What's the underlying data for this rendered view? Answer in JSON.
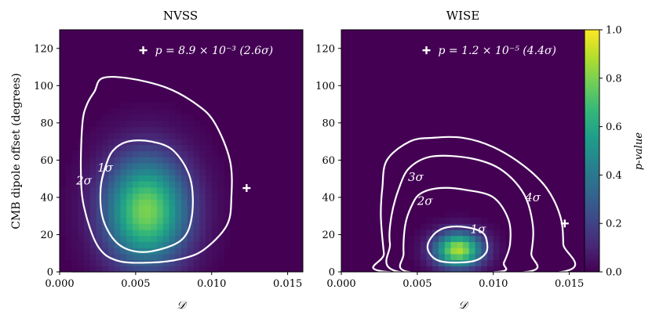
{
  "chart_data": [
    {
      "type": "heatmap",
      "title": "NVSS",
      "xlabel": "𝒟",
      "ylabel": "CMB dipole offset (degrees)",
      "xlim": [
        0.0,
        0.016
      ],
      "ylim": [
        0,
        130
      ],
      "xticks": [
        "0.000",
        "0.005",
        "0.010",
        "0.015"
      ],
      "xtick_values": [
        0.0,
        0.005,
        0.01,
        0.015
      ],
      "yticks": [
        "0",
        "20",
        "40",
        "60",
        "80",
        "100",
        "120"
      ],
      "ytick_values": [
        0,
        20,
        40,
        60,
        80,
        100,
        120
      ],
      "peak": {
        "D": 0.0057,
        "offset": 33,
        "sD": 0.0019,
        "sO": 20,
        "value": 0.8
      },
      "contours": [
        {
          "label": "1σ",
          "points": [
            [
              0.003,
              56
            ],
            [
              0.0035,
              65
            ],
            [
              0.0045,
              70
            ],
            [
              0.006,
              70
            ],
            [
              0.0075,
              65
            ],
            [
              0.0086,
              50
            ],
            [
              0.0087,
              30
            ],
            [
              0.008,
              17
            ],
            [
              0.006,
              11
            ],
            [
              0.0045,
              12
            ],
            [
              0.0035,
              18
            ],
            [
              0.0028,
              30
            ],
            [
              0.0027,
              45
            ]
          ]
        },
        {
          "label": "2σ",
          "points": [
            [
              0.0023,
              97
            ],
            [
              0.0028,
              104
            ],
            [
              0.0045,
              104
            ],
            [
              0.007,
              99
            ],
            [
              0.009,
              90
            ],
            [
              0.0102,
              80
            ],
            [
              0.0112,
              60
            ],
            [
              0.0113,
              40
            ],
            [
              0.011,
              25
            ],
            [
              0.0095,
              12
            ],
            [
              0.008,
              7
            ],
            [
              0.006,
              5
            ],
            [
              0.0038,
              6
            ],
            [
              0.0025,
              14
            ],
            [
              0.0016,
              35
            ],
            [
              0.0014,
              55
            ],
            [
              0.0015,
              80
            ],
            [
              0.0018,
              90
            ]
          ]
        }
      ],
      "contour_labels": [
        {
          "text": "1σ",
          "D": 0.003,
          "offset": 56
        },
        {
          "text": "2σ",
          "D": 0.0016,
          "offset": 49
        }
      ],
      "marker": {
        "D": 0.0123,
        "offset": 45
      },
      "legend": {
        "marker_D": 0.0055,
        "marker_offset": 119,
        "text": "p = 8.9 × 10⁻³ (2.6σ)"
      }
    },
    {
      "type": "heatmap",
      "title": "WISE",
      "xlabel": "𝒟",
      "ylabel": "",
      "xlim": [
        0.0,
        0.016
      ],
      "ylim": [
        0,
        130
      ],
      "xticks": [
        "0.000",
        "0.005",
        "0.010",
        "0.015"
      ],
      "xtick_values": [
        0.0,
        0.005,
        0.01,
        0.015
      ],
      "yticks": [
        "0",
        "20",
        "40",
        "60",
        "80",
        "100",
        "120"
      ],
      "ytick_values": [
        0,
        20,
        40,
        60,
        80,
        100,
        120
      ],
      "peak": {
        "D": 0.0077,
        "offset": 12,
        "sD": 0.0011,
        "sO": 6.5,
        "value": 0.88
      },
      "contours": [
        {
          "label": "1σ",
          "points": [
            [
              0.0062,
              21
            ],
            [
              0.007,
              24
            ],
            [
              0.0082,
              24
            ],
            [
              0.0093,
              21
            ],
            [
              0.0096,
              15
            ],
            [
              0.0095,
              10
            ],
            [
              0.0088,
              6
            ],
            [
              0.0075,
              5
            ],
            [
              0.0064,
              6
            ],
            [
              0.0058,
              10
            ],
            [
              0.0057,
              15
            ]
          ]
        },
        {
          "label": "2σ",
          "points": [
            [
              0.0052,
              42
            ],
            [
              0.0065,
              45
            ],
            [
              0.0082,
              44
            ],
            [
              0.01,
              40
            ],
            [
              0.011,
              28
            ],
            [
              0.0111,
              15
            ],
            [
              0.0107,
              5
            ],
            [
              0.0103,
              0
            ],
            [
              0.0044,
              0
            ],
            [
              0.0041,
              10
            ],
            [
              0.0042,
              25
            ],
            [
              0.0046,
              35
            ]
          ]
        },
        {
          "label": "3σ",
          "points": [
            [
              0.0045,
              56
            ],
            [
              0.006,
              62
            ],
            [
              0.0085,
              61
            ],
            [
              0.0105,
              55
            ],
            [
              0.012,
              42
            ],
            [
              0.0126,
              25
            ],
            [
              0.0125,
              10
            ],
            [
              0.0122,
              0
            ],
            [
              0.0038,
              0
            ],
            [
              0.0032,
              15
            ],
            [
              0.0033,
              30
            ],
            [
              0.0038,
              45
            ]
          ]
        },
        {
          "label": "4σ",
          "points": [
            [
              0.003,
              60
            ],
            [
              0.0045,
              70
            ],
            [
              0.006,
              72
            ],
            [
              0.008,
              72
            ],
            [
              0.01,
              67
            ],
            [
              0.012,
              57
            ],
            [
              0.0135,
              45
            ],
            [
              0.0144,
              30
            ],
            [
              0.0146,
              15
            ],
            [
              0.0145,
              0
            ],
            [
              0.003,
              0
            ],
            [
              0.0028,
              10
            ],
            [
              0.0026,
              30
            ],
            [
              0.0027,
              45
            ]
          ]
        }
      ],
      "contour_labels": [
        {
          "text": "3σ",
          "D": 0.0049,
          "offset": 51
        },
        {
          "text": "2σ",
          "D": 0.0055,
          "offset": 38
        },
        {
          "text": "1σ",
          "D": 0.009,
          "offset": 23
        },
        {
          "text": "4σ",
          "D": 0.0126,
          "offset": 40
        }
      ],
      "marker": {
        "D": 0.0147,
        "offset": 26
      },
      "legend": {
        "marker_D": 0.0056,
        "marker_offset": 119,
        "text": "p = 1.2 × 10⁻⁵ (4.4σ)"
      }
    }
  ],
  "colorbar": {
    "label": "p-value",
    "range": [
      0.0,
      1.0
    ],
    "ticks": [
      "0.0",
      "0.2",
      "0.4",
      "0.6",
      "0.8",
      "1.0"
    ],
    "tick_values": [
      0.0,
      0.2,
      0.4,
      0.6,
      0.8,
      1.0
    ],
    "colormap": "viridis",
    "colors": [
      "#440154",
      "#482878",
      "#3e4989",
      "#31688e",
      "#26828e",
      "#1f9e89",
      "#35b779",
      "#6ece58",
      "#b5de2b",
      "#fde725"
    ]
  }
}
